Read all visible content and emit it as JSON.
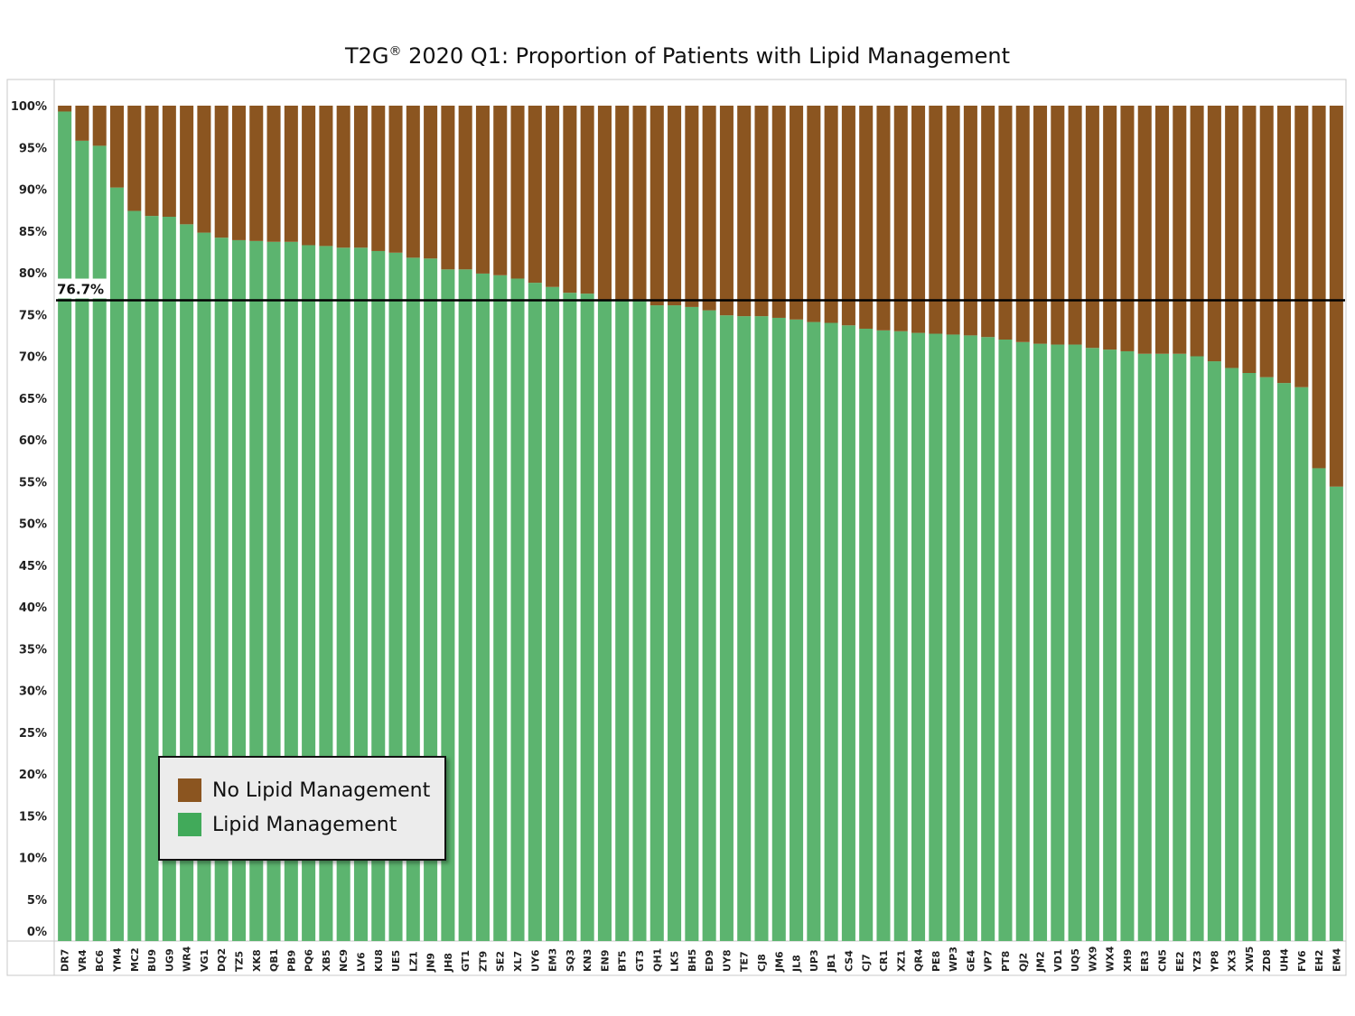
{
  "chart_data": {
    "type": "bar",
    "stacked": true,
    "title_text": "T2G",
    "title_mark": "®",
    "title_rest": " 2020 Q1: Proportion of Patients with Lipid Management",
    "categories": [
      "DR7",
      "VR4",
      "BC6",
      "YM4",
      "MC2",
      "BU9",
      "UG9",
      "WR4",
      "VG1",
      "DQ2",
      "TZ5",
      "XK8",
      "QB1",
      "PB9",
      "PQ6",
      "XB5",
      "NC9",
      "LV6",
      "KU8",
      "UE5",
      "LZ1",
      "JN9",
      "JH8",
      "GT1",
      "ZT9",
      "SE2",
      "XL7",
      "UY6",
      "EM3",
      "SQ3",
      "KN3",
      "EN9",
      "BT5",
      "GT3",
      "QH1",
      "LK5",
      "BH5",
      "ED9",
      "UY8",
      "TE7",
      "CJ8",
      "JM6",
      "JL8",
      "UP3",
      "JB1",
      "CS4",
      "CJ7",
      "CR1",
      "XZ1",
      "QR4",
      "PE8",
      "WP3",
      "GE4",
      "VP7",
      "PT8",
      "QJ2",
      "JM2",
      "VD1",
      "UQ5",
      "WX9",
      "WX4",
      "XH9",
      "ER3",
      "CN5",
      "EE2",
      "YZ3",
      "YP8",
      "XX3",
      "XW5",
      "ZD8",
      "UH4",
      "FV6",
      "EH2",
      "EM4"
    ],
    "series": [
      {
        "name": "Lipid Management",
        "color": "#5cb46f",
        "values": [
          99.3,
          95.8,
          95.2,
          90.2,
          87.4,
          86.8,
          86.7,
          85.8,
          84.8,
          84.2,
          83.9,
          83.8,
          83.7,
          83.7,
          83.3,
          83.2,
          83.0,
          83.0,
          82.6,
          82.4,
          81.8,
          81.7,
          80.4,
          80.4,
          79.9,
          79.7,
          79.3,
          78.8,
          78.3,
          77.6,
          77.5,
          76.7,
          76.6,
          76.6,
          76.1,
          76.1,
          75.9,
          75.5,
          74.9,
          74.8,
          74.8,
          74.6,
          74.4,
          74.1,
          74.0,
          73.7,
          73.3,
          73.1,
          73.0,
          72.8,
          72.7,
          72.6,
          72.5,
          72.3,
          72.0,
          71.7,
          71.5,
          71.4,
          71.4,
          71.0,
          70.8,
          70.6,
          70.3,
          70.3,
          70.3,
          70.0,
          69.4,
          68.6,
          68.0,
          67.5,
          66.8,
          66.3,
          56.6,
          54.4
        ]
      },
      {
        "name": "No Lipid Management",
        "color": "#8b5520",
        "values": [
          0.7,
          4.2,
          4.8,
          9.8,
          12.6,
          13.2,
          13.3,
          14.2,
          15.2,
          15.8,
          16.1,
          16.2,
          16.3,
          16.3,
          16.7,
          16.8,
          17.0,
          17.0,
          17.4,
          17.6,
          18.2,
          18.3,
          19.6,
          19.6,
          20.1,
          20.3,
          20.7,
          21.2,
          21.7,
          22.4,
          22.5,
          23.3,
          23.4,
          23.4,
          23.9,
          23.9,
          24.1,
          24.5,
          25.1,
          25.2,
          25.2,
          25.4,
          25.6,
          25.9,
          26.0,
          26.3,
          26.7,
          26.9,
          27.0,
          27.2,
          27.3,
          27.4,
          27.5,
          27.7,
          28.0,
          28.3,
          28.5,
          28.6,
          28.6,
          29.0,
          29.2,
          29.4,
          29.7,
          29.7,
          29.7,
          30.0,
          30.6,
          31.4,
          32.0,
          32.5,
          33.2,
          33.7,
          43.4,
          45.6
        ]
      }
    ],
    "reference_line": {
      "value": 76.7,
      "label": "76.7%",
      "color": "#000000"
    },
    "y_ticks": [
      "0%",
      "5%",
      "10%",
      "15%",
      "20%",
      "25%",
      "30%",
      "35%",
      "40%",
      "45%",
      "50%",
      "55%",
      "60%",
      "65%",
      "70%",
      "75%",
      "80%",
      "85%",
      "90%",
      "95%",
      "100%"
    ],
    "ylim": [
      0,
      100
    ],
    "grid": false,
    "legend": {
      "position": "bottom-left",
      "items": [
        {
          "label": "No Lipid Management",
          "color": "#8b5520"
        },
        {
          "label": "Lipid Management",
          "color": "#41aa5a"
        }
      ]
    }
  }
}
